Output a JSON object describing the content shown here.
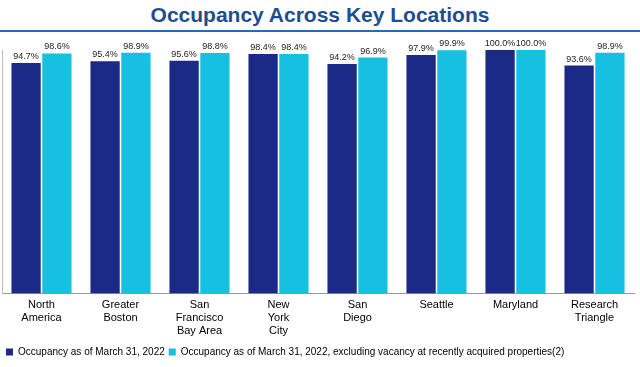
{
  "chart_data": {
    "type": "bar",
    "title": "Occupancy Across Key Locations",
    "categories": [
      [
        "North",
        "America"
      ],
      [
        "Greater",
        "Boston"
      ],
      [
        "San",
        "Francisco",
        "Bay Area"
      ],
      [
        "New",
        "York",
        "City"
      ],
      [
        "San",
        "Diego"
      ],
      "Seattle",
      "Maryland",
      [
        "Research",
        "Triangle"
      ]
    ],
    "series": [
      {
        "name": "Occupancy as of March 31, 2022",
        "color": "#1c2a87",
        "values": [
          94.7,
          95.4,
          95.6,
          98.4,
          94.2,
          97.9,
          100.0,
          93.6
        ],
        "value_labels": [
          "94.7%",
          "95.4%",
          "95.6%",
          "98.4%",
          "94.2%",
          "97.9%",
          "100.0%",
          "93.6%"
        ]
      },
      {
        "name": "Occupancy as of March 31, 2022, excluding vacancy at recently acquired properties(2)",
        "color": "#16c0e0",
        "values": [
          98.6,
          98.9,
          98.8,
          98.4,
          96.9,
          99.9,
          100.0,
          98.9
        ],
        "value_labels": [
          "98.6%",
          "98.9%",
          "98.8%",
          "98.4%",
          "96.9%",
          "99.9%",
          "100.0%",
          "98.9%"
        ]
      }
    ],
    "ylim": [
      0,
      100
    ],
    "grid": false,
    "legend": "bottom",
    "data_labels": true,
    "tick_labels": "x"
  }
}
